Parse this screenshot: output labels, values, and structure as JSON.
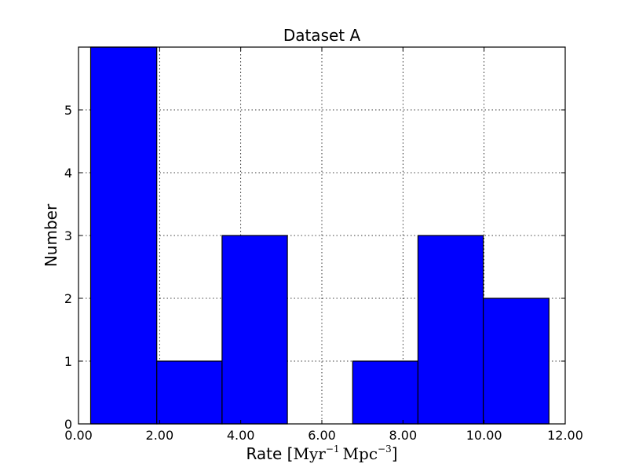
{
  "chart_data": {
    "type": "bar",
    "title": "Dataset A",
    "xlabel": {
      "prefix": "Rate [",
      "unit1": "Myr",
      "exp1": "−1",
      "unit2": "Mpc",
      "exp2": "−3",
      "suffix": "]"
    },
    "ylabel": "Number",
    "xlim": [
      0,
      12
    ],
    "ylim": [
      0,
      6
    ],
    "xticks": [
      0,
      2,
      4,
      6,
      8,
      10,
      12
    ],
    "xtick_labels": [
      "0.00",
      "2.00",
      "4.00",
      "6.00",
      "8.00",
      "10.00",
      "12.00"
    ],
    "yticks": [
      0,
      1,
      2,
      3,
      4,
      5
    ],
    "ytick_labels": [
      "0",
      "1",
      "2",
      "3",
      "4",
      "5"
    ],
    "grid": true,
    "bar_color": "#0000ff",
    "bins": [
      {
        "x0": 0.3,
        "x1": 1.93,
        "count": 6
      },
      {
        "x0": 1.93,
        "x1": 3.54,
        "count": 1
      },
      {
        "x0": 3.54,
        "x1": 5.15,
        "count": 3
      },
      {
        "x0": 5.15,
        "x1": 6.76,
        "count": 0
      },
      {
        "x0": 6.76,
        "x1": 8.37,
        "count": 1
      },
      {
        "x0": 8.37,
        "x1": 9.98,
        "count": 3
      },
      {
        "x0": 9.98,
        "x1": 11.6,
        "count": 2
      }
    ]
  }
}
